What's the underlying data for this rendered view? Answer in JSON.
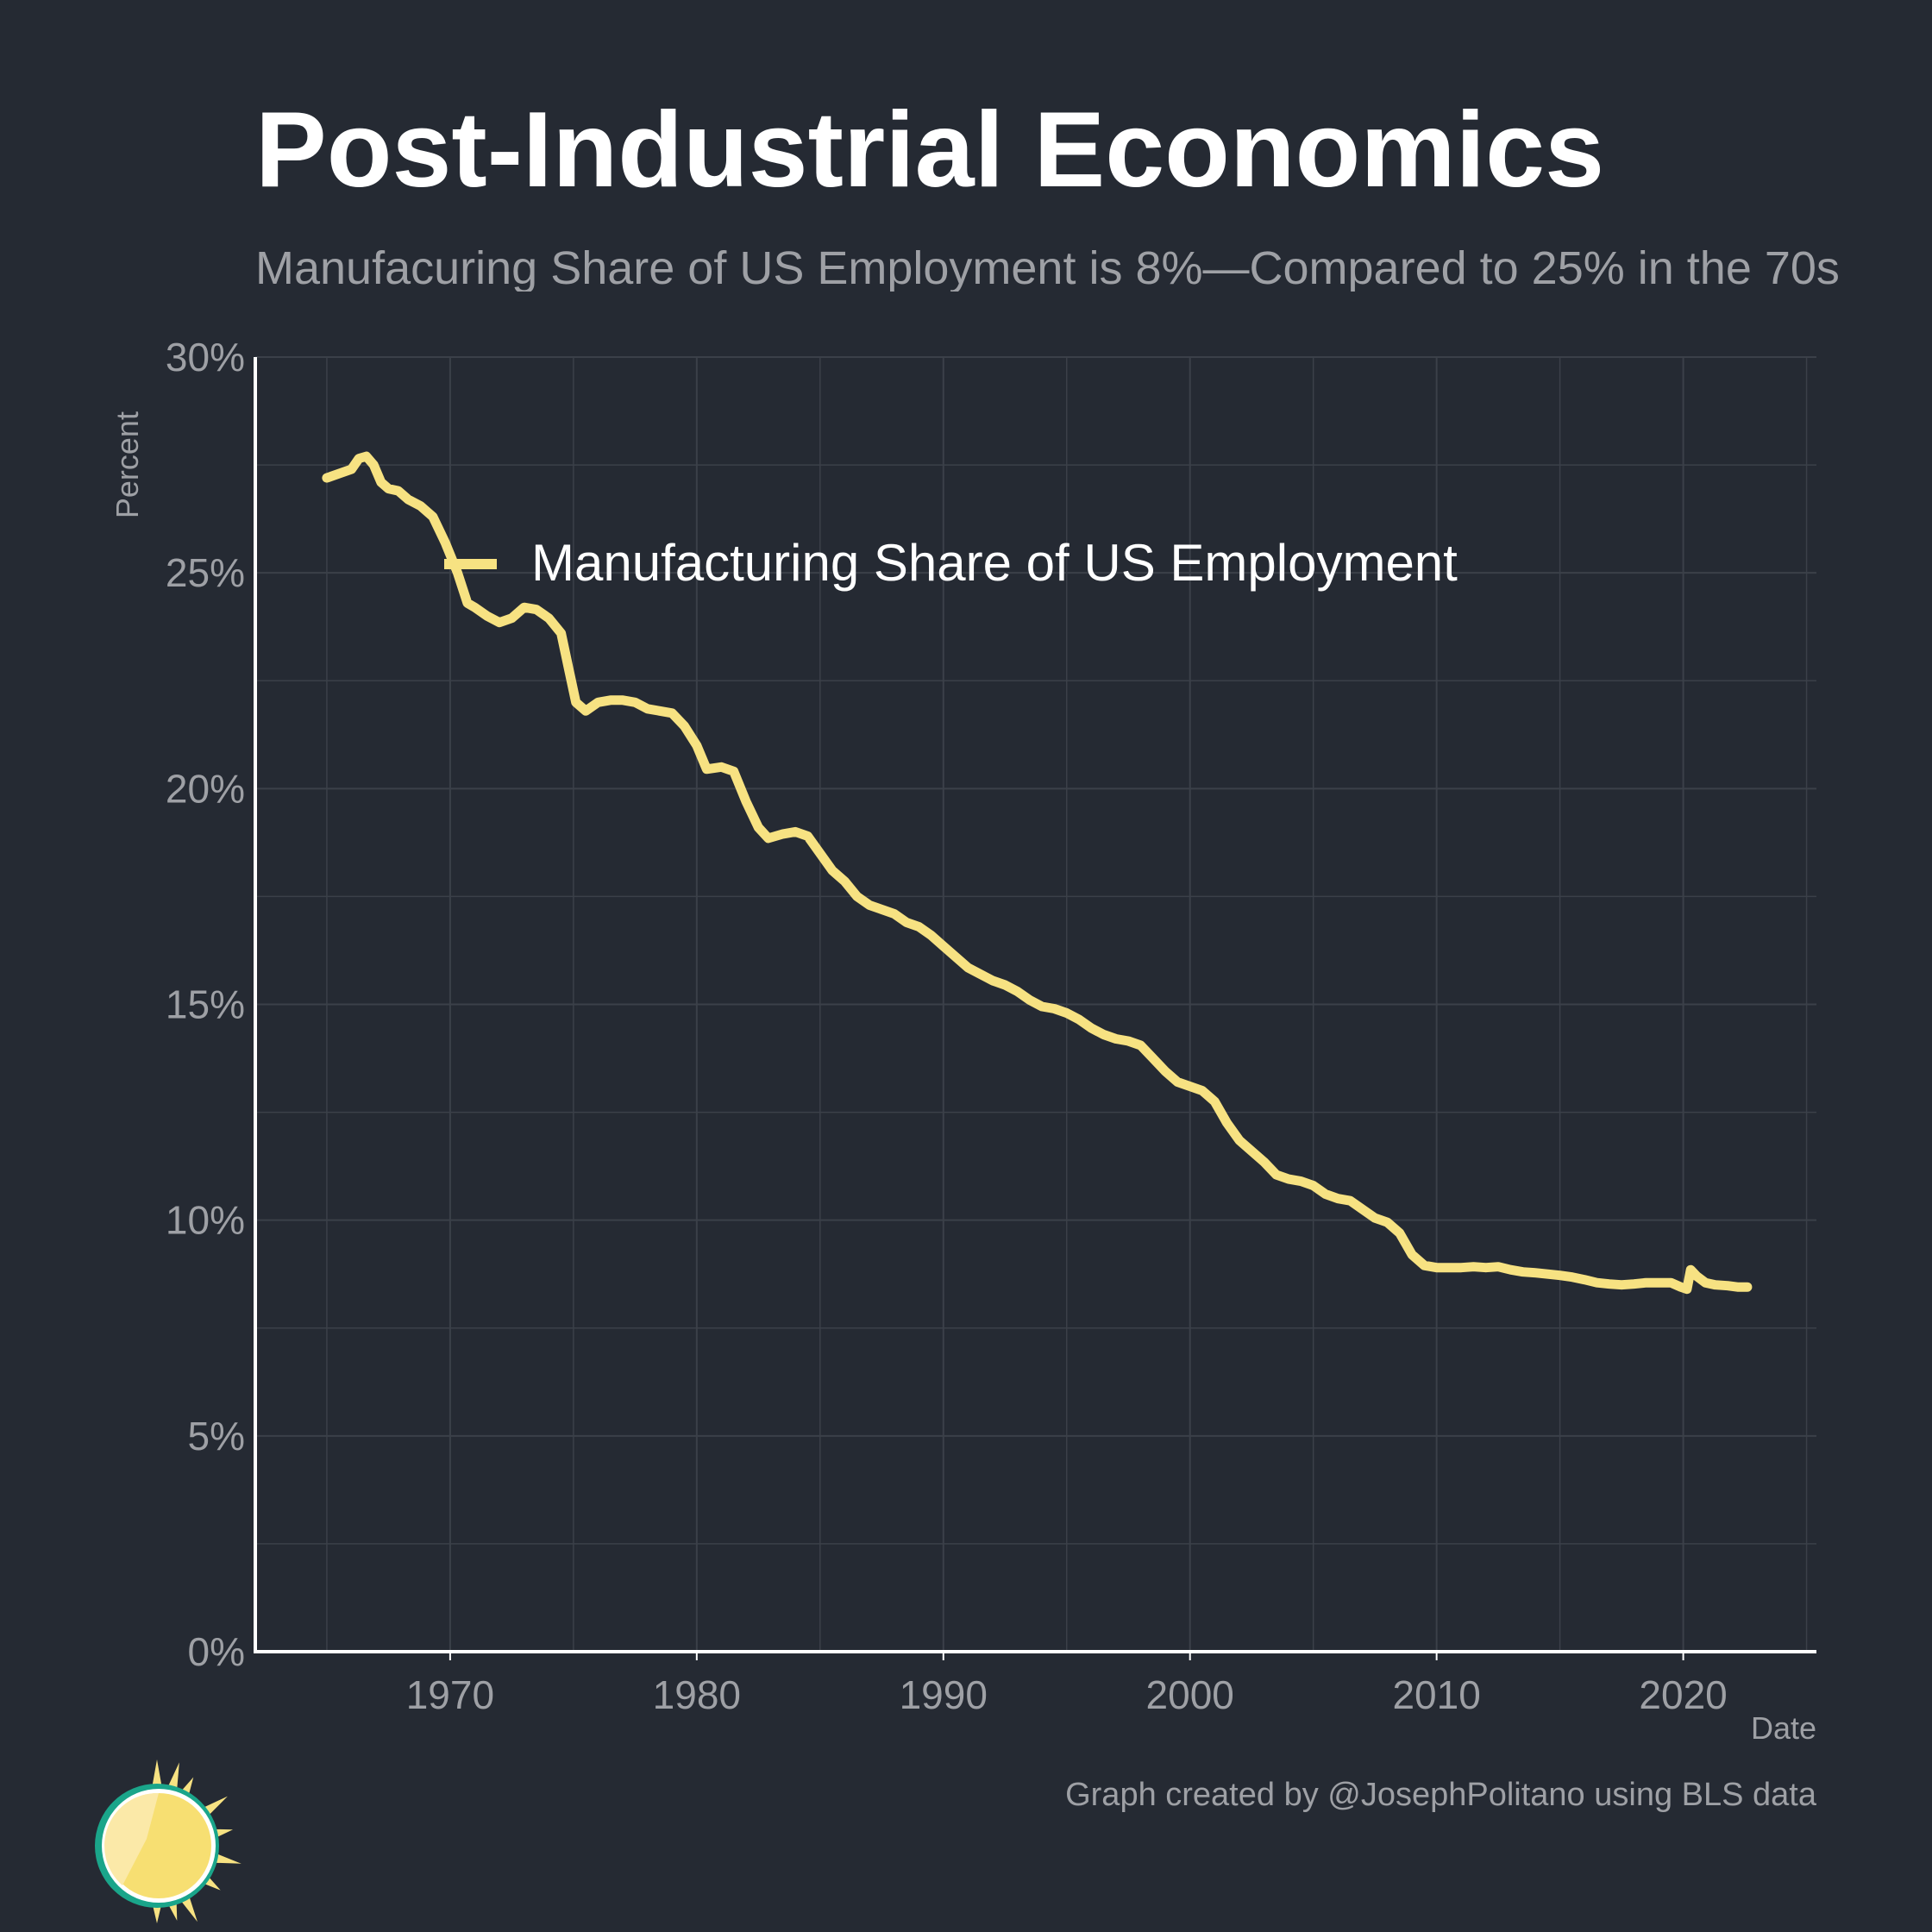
{
  "header": {
    "title": "Post-Industrial Economics",
    "subtitle": "Manufacuring Share of US Employment is 8%—Compared to 25% in the 70s"
  },
  "caption": "Graph created by @JosephPolitano using BLS data",
  "colors": {
    "background": "#252a33",
    "series": "#f7e282",
    "grid": "#3b4049",
    "axis": "#ffffff",
    "muted_text": "#9ea0a5"
  },
  "logo": {
    "icon": "sun-icon"
  },
  "chart_data": {
    "type": "line",
    "title": "Post-Industrial Economics",
    "xlabel": "Date",
    "ylabel": "Percent",
    "x_ticks": [
      1970,
      1980,
      1990,
      2000,
      2010,
      2020
    ],
    "y_ticks": [
      "0%",
      "5%",
      "10%",
      "15%",
      "20%",
      "25%",
      "30%"
    ],
    "ylim": [
      0,
      30
    ],
    "xlim": [
      1962.1,
      2025.4
    ],
    "grid": true,
    "legend_position": "top-left",
    "series": [
      {
        "name": "Manufacturing Share of US Employment",
        "color": "#f7e282",
        "points": [
          [
            1965.0,
            27.2
          ],
          [
            1965.5,
            27.3
          ],
          [
            1966.0,
            27.4
          ],
          [
            1966.3,
            27.65
          ],
          [
            1966.6,
            27.7
          ],
          [
            1966.9,
            27.5
          ],
          [
            1967.2,
            27.1
          ],
          [
            1967.5,
            26.95
          ],
          [
            1967.9,
            26.9
          ],
          [
            1968.3,
            26.7
          ],
          [
            1968.8,
            26.55
          ],
          [
            1969.3,
            26.3
          ],
          [
            1969.8,
            25.7
          ],
          [
            1970.3,
            25.0
          ],
          [
            1970.7,
            24.3
          ],
          [
            1971.0,
            24.2
          ],
          [
            1971.5,
            24.0
          ],
          [
            1972.0,
            23.85
          ],
          [
            1972.5,
            23.95
          ],
          [
            1973.0,
            24.2
          ],
          [
            1973.5,
            24.15
          ],
          [
            1974.0,
            23.95
          ],
          [
            1974.5,
            23.6
          ],
          [
            1974.8,
            22.8
          ],
          [
            1975.1,
            22.0
          ],
          [
            1975.5,
            21.8
          ],
          [
            1976.0,
            22.0
          ],
          [
            1976.5,
            22.05
          ],
          [
            1977.0,
            22.05
          ],
          [
            1977.5,
            22.0
          ],
          [
            1978.0,
            21.85
          ],
          [
            1978.5,
            21.8
          ],
          [
            1979.0,
            21.75
          ],
          [
            1979.5,
            21.45
          ],
          [
            1980.0,
            21.0
          ],
          [
            1980.4,
            20.45
          ],
          [
            1981.0,
            20.5
          ],
          [
            1981.5,
            20.4
          ],
          [
            1982.0,
            19.7
          ],
          [
            1982.5,
            19.1
          ],
          [
            1982.9,
            18.85
          ],
          [
            1983.5,
            18.95
          ],
          [
            1984.0,
            19.0
          ],
          [
            1984.5,
            18.9
          ],
          [
            1985.0,
            18.5
          ],
          [
            1985.5,
            18.1
          ],
          [
            1986.0,
            17.85
          ],
          [
            1986.5,
            17.5
          ],
          [
            1987.0,
            17.3
          ],
          [
            1987.5,
            17.2
          ],
          [
            1988.0,
            17.1
          ],
          [
            1988.5,
            16.9
          ],
          [
            1989.0,
            16.8
          ],
          [
            1989.5,
            16.6
          ],
          [
            1990.0,
            16.35
          ],
          [
            1990.5,
            16.1
          ],
          [
            1991.0,
            15.85
          ],
          [
            1991.5,
            15.7
          ],
          [
            1992.0,
            15.55
          ],
          [
            1992.5,
            15.45
          ],
          [
            1993.0,
            15.3
          ],
          [
            1993.5,
            15.1
          ],
          [
            1994.0,
            14.95
          ],
          [
            1994.5,
            14.9
          ],
          [
            1995.0,
            14.8
          ],
          [
            1995.5,
            14.65
          ],
          [
            1996.0,
            14.45
          ],
          [
            1996.5,
            14.3
          ],
          [
            1997.0,
            14.2
          ],
          [
            1997.5,
            14.15
          ],
          [
            1998.0,
            14.05
          ],
          [
            1998.5,
            13.75
          ],
          [
            1999.0,
            13.45
          ],
          [
            1999.5,
            13.2
          ],
          [
            2000.0,
            13.1
          ],
          [
            2000.5,
            13.0
          ],
          [
            2001.0,
            12.75
          ],
          [
            2001.5,
            12.25
          ],
          [
            2002.0,
            11.85
          ],
          [
            2002.5,
            11.6
          ],
          [
            2003.0,
            11.35
          ],
          [
            2003.5,
            11.05
          ],
          [
            2004.0,
            10.95
          ],
          [
            2004.5,
            10.9
          ],
          [
            2005.0,
            10.8
          ],
          [
            2005.5,
            10.6
          ],
          [
            2006.0,
            10.5
          ],
          [
            2006.5,
            10.45
          ],
          [
            2007.0,
            10.25
          ],
          [
            2007.5,
            10.05
          ],
          [
            2008.0,
            9.95
          ],
          [
            2008.5,
            9.7
          ],
          [
            2009.0,
            9.2
          ],
          [
            2009.5,
            8.95
          ],
          [
            2010.0,
            8.9
          ],
          [
            2010.5,
            8.9
          ],
          [
            2011.0,
            8.9
          ],
          [
            2011.5,
            8.92
          ],
          [
            2012.0,
            8.9
          ],
          [
            2012.5,
            8.92
          ],
          [
            2013.0,
            8.85
          ],
          [
            2013.5,
            8.8
          ],
          [
            2014.0,
            8.78
          ],
          [
            2014.5,
            8.75
          ],
          [
            2015.0,
            8.72
          ],
          [
            2015.5,
            8.68
          ],
          [
            2016.0,
            8.62
          ],
          [
            2016.5,
            8.55
          ],
          [
            2017.0,
            8.52
          ],
          [
            2017.5,
            8.5
          ],
          [
            2018.0,
            8.52
          ],
          [
            2018.5,
            8.55
          ],
          [
            2019.0,
            8.55
          ],
          [
            2019.5,
            8.55
          ],
          [
            2019.9,
            8.45
          ],
          [
            2020.15,
            8.4
          ],
          [
            2020.3,
            8.85
          ],
          [
            2020.55,
            8.7
          ],
          [
            2020.9,
            8.55
          ],
          [
            2021.3,
            8.5
          ],
          [
            2021.8,
            8.48
          ],
          [
            2022.2,
            8.45
          ],
          [
            2022.6,
            8.45
          ]
        ]
      }
    ]
  }
}
